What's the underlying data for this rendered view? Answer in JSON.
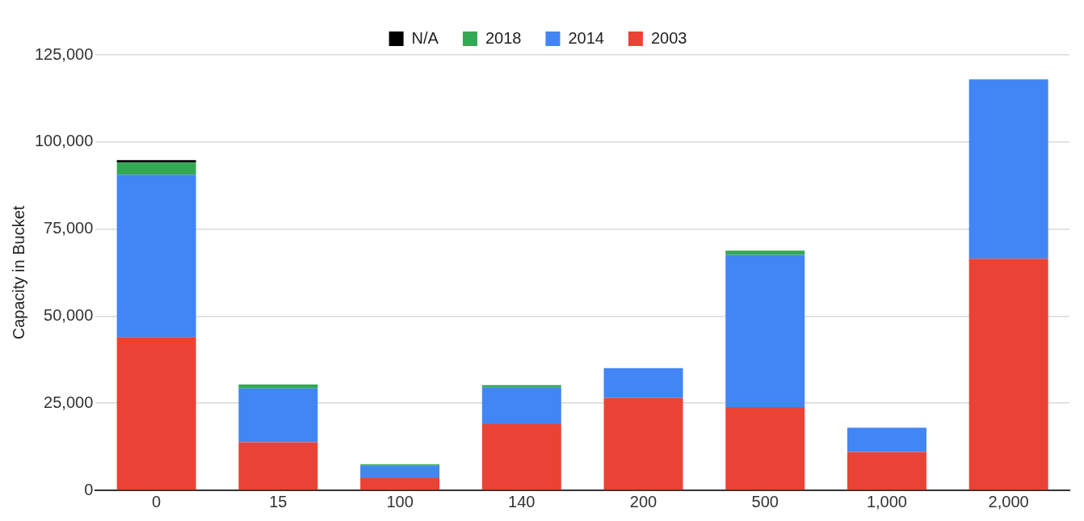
{
  "chart_data": {
    "type": "bar",
    "stacked": true,
    "ylabel": "Capacity in Bucket",
    "categories": [
      "0",
      "15",
      "100",
      "140",
      "200",
      "500",
      "1,000",
      "2,000"
    ],
    "series": [
      {
        "name": "2003",
        "color": "#ea4335",
        "values": [
          44000,
          13800,
          3500,
          19000,
          26500,
          23900,
          11000,
          66500
        ]
      },
      {
        "name": "2014",
        "color": "#4285f4",
        "values": [
          46600,
          15500,
          3500,
          10500,
          8600,
          43700,
          7000,
          51500
        ]
      },
      {
        "name": "2018",
        "color": "#34a853",
        "values": [
          3500,
          1100,
          500,
          700,
          null,
          1200,
          null,
          null
        ]
      },
      {
        "name": "N/A",
        "color": "#000000",
        "values": [
          700,
          null,
          null,
          null,
          null,
          null,
          null,
          null
        ]
      }
    ],
    "ylim": [
      0,
      125000
    ],
    "yticks": [
      0,
      {
        "value": 25000,
        "label": "25,000"
      },
      {
        "value": 50000,
        "label": "50,000"
      },
      {
        "value": 75000,
        "label": "75,000"
      },
      {
        "value": 100000,
        "label": "100,000"
      },
      {
        "value": 125000,
        "label": "125,000"
      }
    ],
    "grid": "y",
    "legend": "top"
  }
}
